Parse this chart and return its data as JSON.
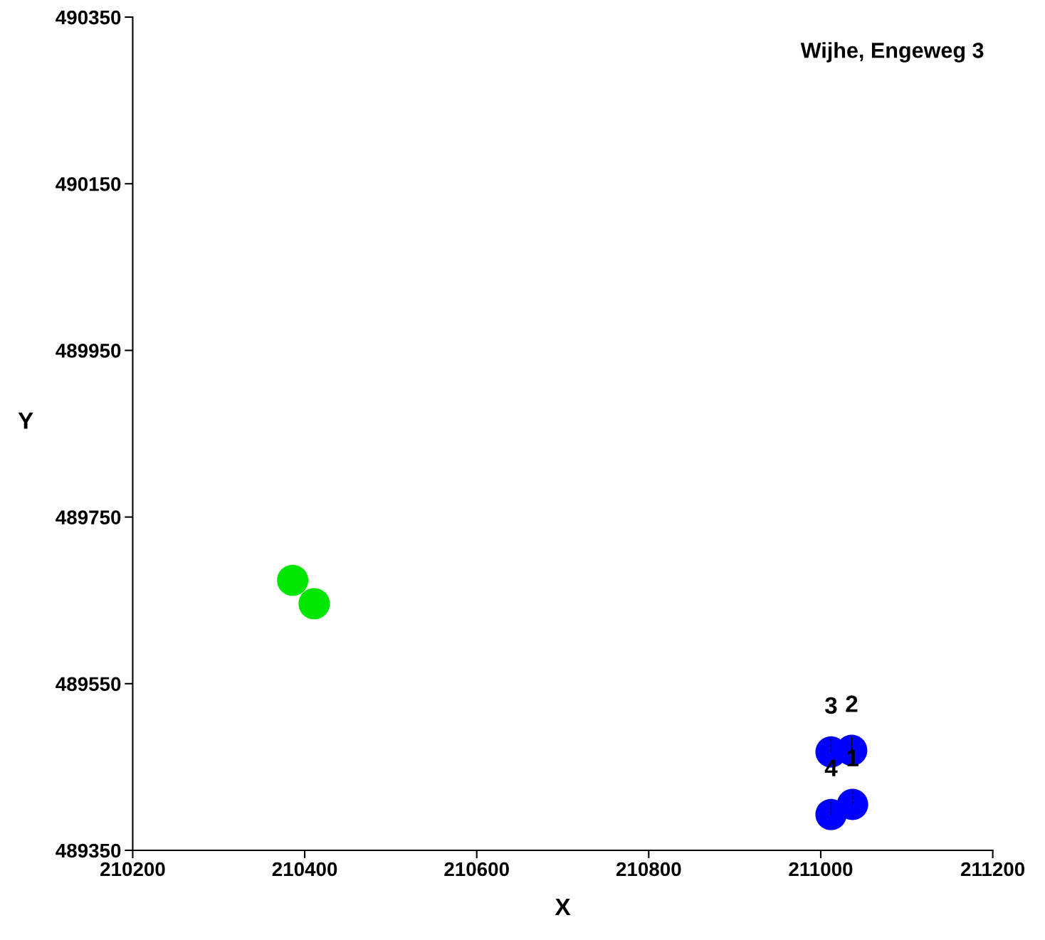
{
  "chart_data": {
    "type": "scatter",
    "title": "Wijhe, Engeweg 3",
    "xlabel": "X",
    "ylabel": "Y",
    "xlim": [
      210200,
      211200
    ],
    "xticks": [
      210200,
      210400,
      210600,
      210800,
      211000,
      211200
    ],
    "ylim": [
      489350,
      490350
    ],
    "yticks": [
      489350,
      489550,
      489750,
      489950,
      490150,
      490350
    ],
    "grid": false,
    "legend": false,
    "marker": "circle",
    "series": [
      {
        "color": "#00e600",
        "x": [
          210386,
          210411
        ],
        "values": [
          489674,
          489646
        ]
      },
      {
        "color": "#0000ff",
        "x": [
          211037,
          211036,
          211012,
          211012
        ],
        "values": [
          489405,
          489470,
          489468,
          489393
        ]
      }
    ],
    "annotations": [
      {
        "text": "1",
        "x": 211037,
        "y": 489405
      },
      {
        "text": "2",
        "x": 211036,
        "y": 489470
      },
      {
        "text": "3",
        "x": 211012,
        "y": 489468
      },
      {
        "text": "4",
        "x": 211012,
        "y": 489393
      }
    ]
  }
}
